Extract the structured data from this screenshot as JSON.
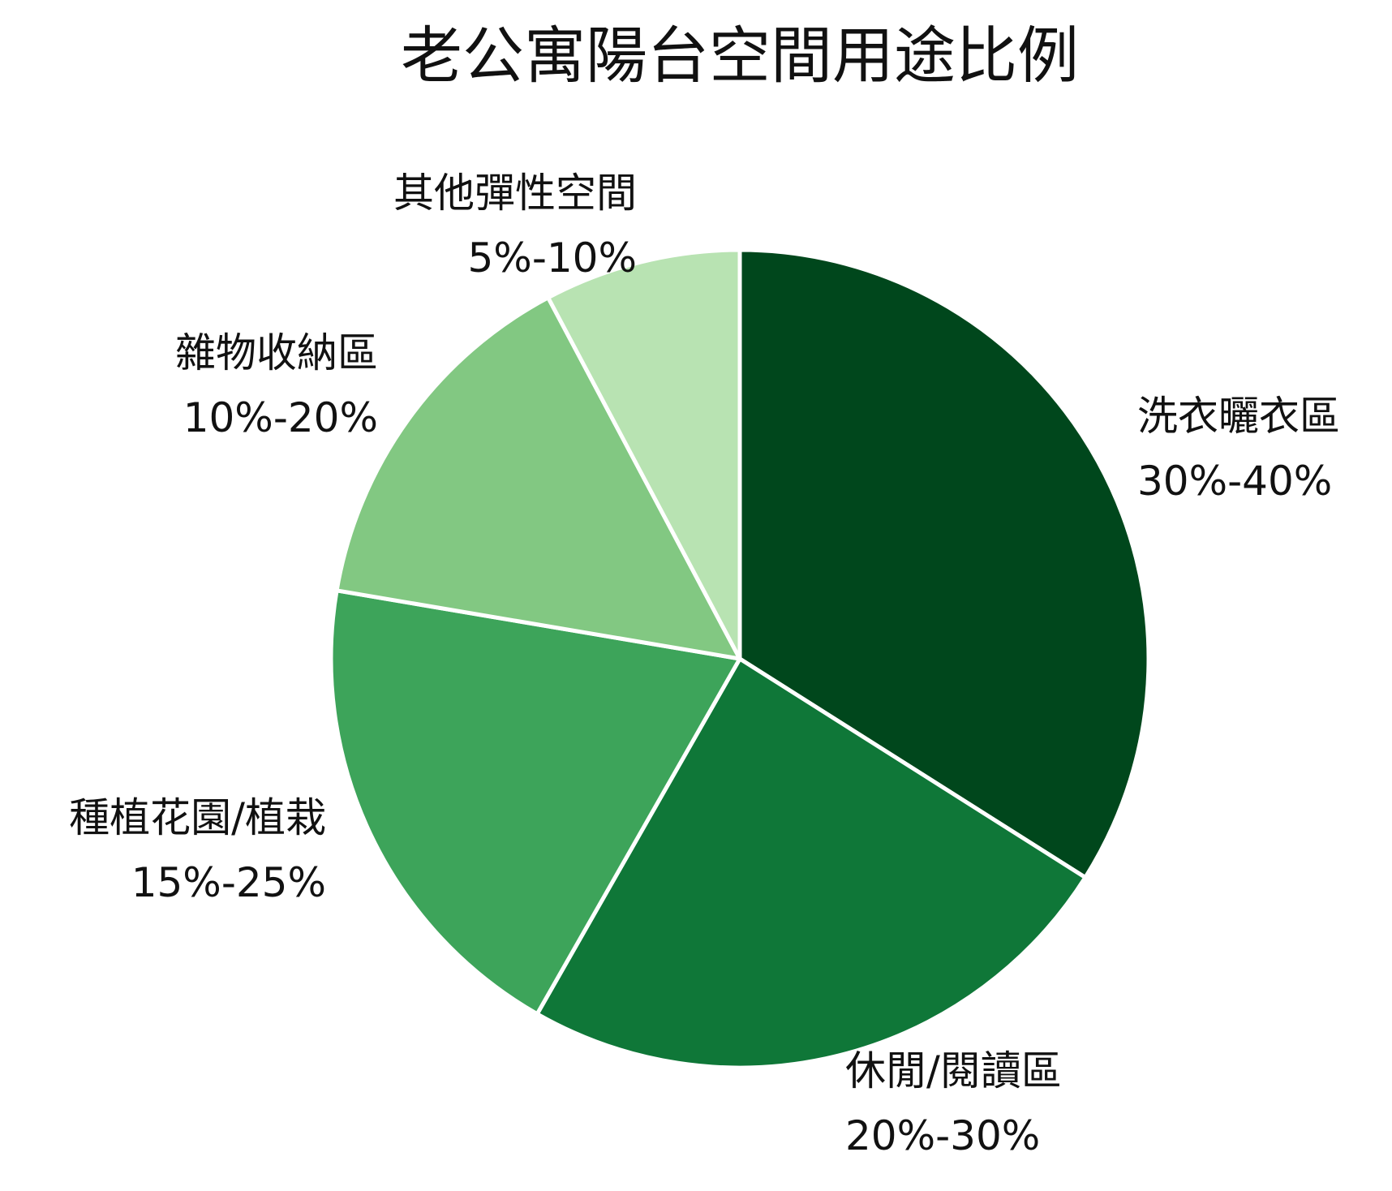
{
  "chart_data": {
    "type": "pie",
    "title": "老公寓陽台空間用途比例",
    "slices": [
      {
        "label": "洗衣曬衣區",
        "range_text": "30%-40%",
        "value": 35,
        "color": "#00471c"
      },
      {
        "label": "休閒/閱讀區",
        "range_text": "20%-30%",
        "value": 25,
        "color": "#0f7738"
      },
      {
        "label": "種植花園/植栽",
        "range_text": "15%-25%",
        "value": 20,
        "color": "#3da45a"
      },
      {
        "label": "雜物收納區",
        "range_text": "10%-20%",
        "value": 15,
        "color": "#82c882"
      },
      {
        "label": "其他彈性空間",
        "range_text": "5%-10%",
        "value": 8,
        "color": "#b8e3b2"
      }
    ],
    "start_angle_deg": 0,
    "direction": "clockwise",
    "slice_border_color": "#ffffff",
    "legend": "none (labels placed outside slices)"
  }
}
